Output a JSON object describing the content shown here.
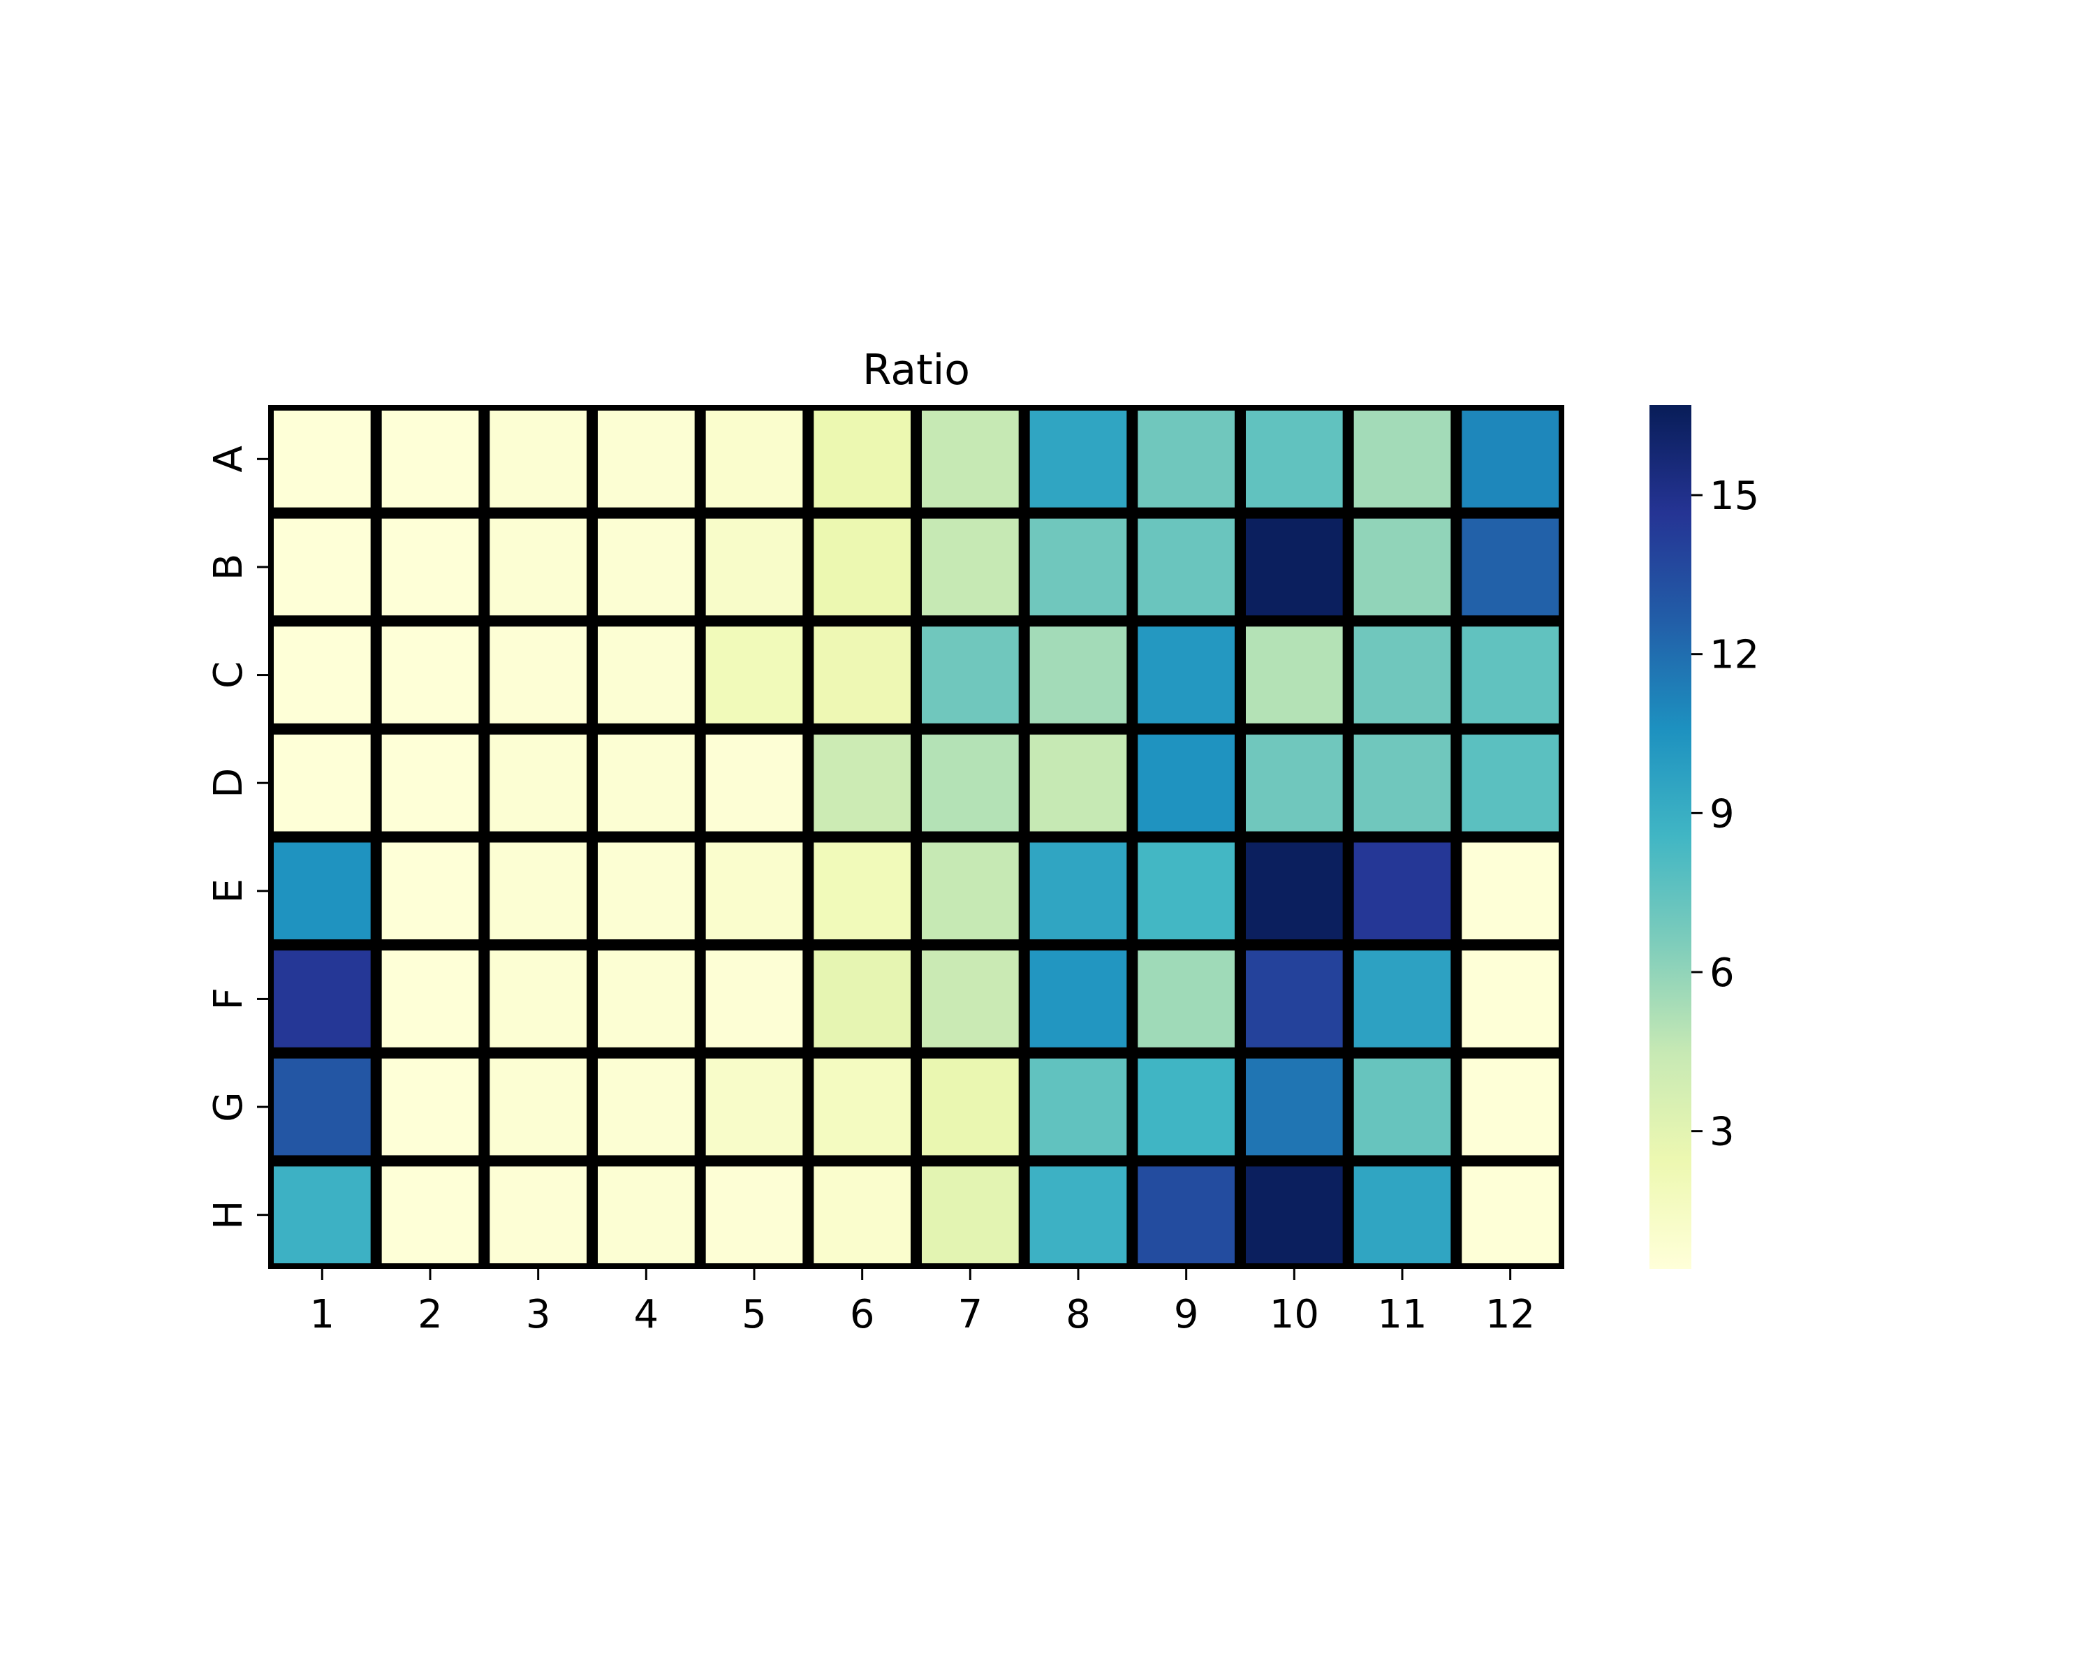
{
  "chart_data": {
    "type": "heatmap",
    "title": "Ratio",
    "xlabel": "",
    "ylabel": "",
    "x_categories": [
      "1",
      "2",
      "3",
      "4",
      "5",
      "6",
      "7",
      "8",
      "9",
      "10",
      "11",
      "12"
    ],
    "y_categories": [
      "A",
      "B",
      "C",
      "D",
      "E",
      "F",
      "G",
      "H"
    ],
    "values": [
      [
        0.5,
        0.5,
        0.7,
        0.7,
        1.0,
        2.5,
        4.5,
        9.5,
        7.0,
        7.5,
        5.5,
        11.0
      ],
      [
        0.5,
        0.5,
        0.7,
        0.7,
        1.2,
        2.5,
        4.5,
        7.0,
        7.2,
        16.5,
        6.0,
        12.5
      ],
      [
        0.5,
        0.5,
        0.6,
        0.7,
        2.0,
        2.3,
        7.0,
        5.5,
        10.2,
        5.0,
        7.0,
        7.5
      ],
      [
        0.5,
        0.5,
        0.7,
        0.7,
        0.6,
        4.2,
        5.0,
        4.5,
        10.5,
        7.0,
        7.0,
        7.7
      ],
      [
        10.5,
        0.5,
        0.7,
        0.7,
        1.0,
        2.0,
        4.5,
        9.5,
        8.5,
        16.5,
        14.5,
        0.5
      ],
      [
        14.5,
        0.5,
        0.7,
        0.7,
        0.6,
        2.8,
        4.3,
        10.3,
        5.6,
        14.0,
        9.7,
        0.5
      ],
      [
        13.0,
        0.5,
        0.7,
        0.7,
        1.2,
        1.6,
        2.6,
        7.5,
        8.6,
        11.7,
        7.3,
        0.5
      ],
      [
        8.8,
        0.5,
        0.6,
        0.7,
        0.6,
        1.0,
        3.0,
        8.8,
        13.5,
        16.5,
        9.5,
        0.5
      ]
    ],
    "colorbar": {
      "min": 0.4,
      "max": 16.7,
      "ticks": [
        3,
        6,
        9,
        12,
        15
      ],
      "colormap": "YlGnBu",
      "stops": [
        "#ffffd9",
        "#edf8b1",
        "#c7e9b4",
        "#7fcdbb",
        "#41b6c4",
        "#1d91c0",
        "#225ea8",
        "#253494",
        "#081d58"
      ]
    },
    "cell_border_color": "#000000",
    "grid": false
  }
}
